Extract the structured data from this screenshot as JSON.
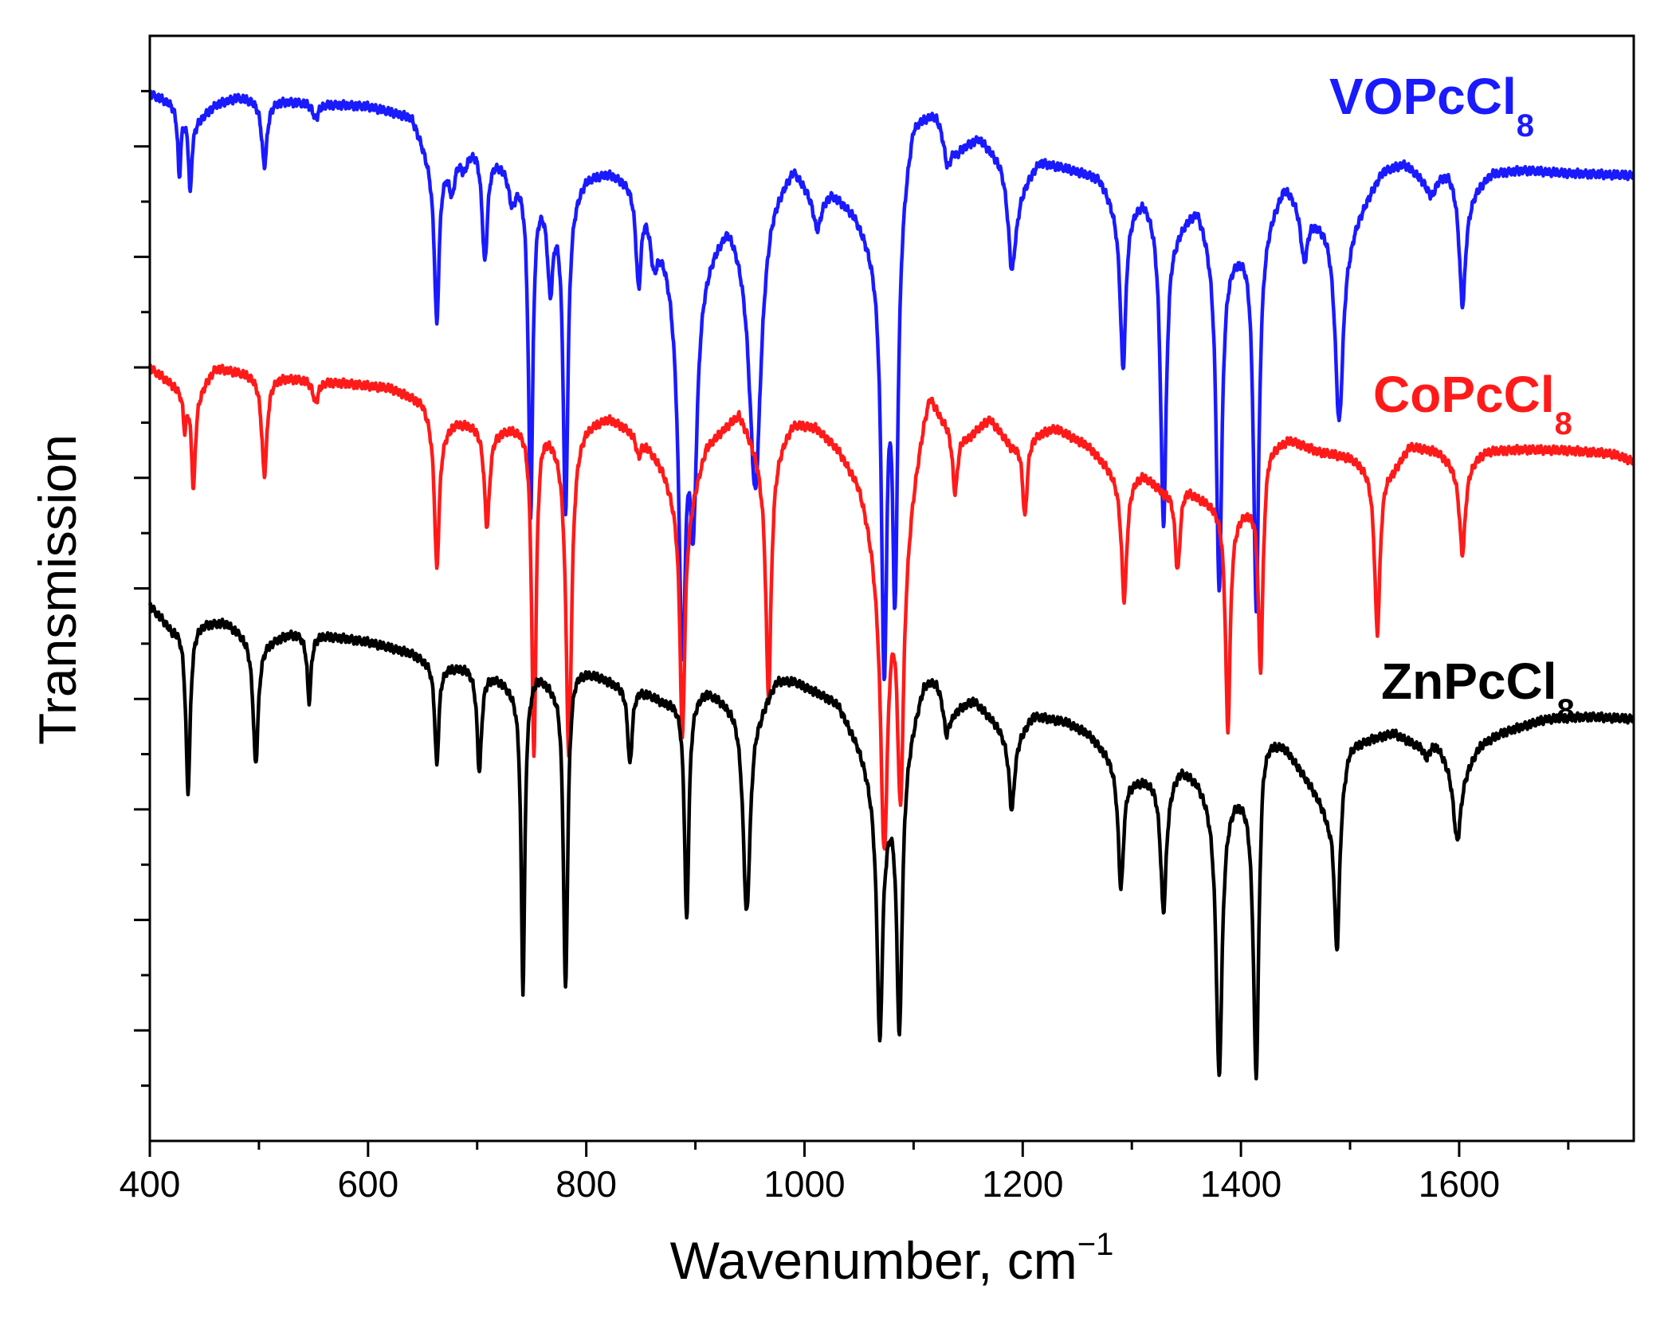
{
  "chart_data": {
    "type": "line",
    "title": "",
    "xlabel": "Wavenumber, cm",
    "xlabel_sup": "−1",
    "ylabel": "Transmission",
    "xlim": [
      400,
      1760
    ],
    "ylim": [
      0,
      100
    ],
    "x_ticks_major": [
      400,
      600,
      800,
      1000,
      1200,
      1400,
      1600
    ],
    "x_tick_labels": [
      "400",
      "600",
      "800",
      "1000",
      "1200",
      "1400",
      "1600"
    ],
    "x_ticks_minor": [
      500,
      700,
      900,
      1100,
      1300,
      1500,
      1700
    ],
    "y_ticks_major": [
      10,
      20,
      30,
      40,
      50,
      60,
      70,
      80,
      90
    ],
    "y_ticks_minor": [
      5,
      15,
      25,
      35,
      45,
      55,
      65,
      75,
      85,
      95
    ],
    "grid": false,
    "series": [
      {
        "name": "VOPcCl8",
        "label_main": "VOPcCl",
        "label_sub": "8",
        "color": "#1a1aff",
        "baseline": [
          [
            400,
            94.8
          ],
          [
            420,
            94
          ],
          [
            440,
            92
          ],
          [
            460,
            93.8
          ],
          [
            480,
            94.5
          ],
          [
            520,
            94.2
          ],
          [
            560,
            93.9
          ],
          [
            600,
            93.7
          ],
          [
            640,
            92.8
          ],
          [
            660,
            88
          ],
          [
            680,
            89.4
          ],
          [
            700,
            90.4
          ],
          [
            720,
            89.2
          ],
          [
            740,
            88
          ],
          [
            780,
            85
          ],
          [
            800,
            87.6
          ],
          [
            820,
            88
          ],
          [
            850,
            87
          ],
          [
            880,
            80
          ],
          [
            900,
            79
          ],
          [
            930,
            84
          ],
          [
            950,
            81
          ],
          [
            970,
            86
          ],
          [
            990,
            88.6
          ],
          [
            1010,
            85.5
          ],
          [
            1025,
            86.2
          ],
          [
            1045,
            84.5
          ],
          [
            1060,
            82
          ],
          [
            1075,
            80
          ],
          [
            1090,
            88
          ],
          [
            1100,
            93
          ],
          [
            1120,
            93.5
          ],
          [
            1140,
            90
          ],
          [
            1160,
            91
          ],
          [
            1180,
            89
          ],
          [
            1195,
            86
          ],
          [
            1215,
            88.8
          ],
          [
            1240,
            88.2
          ],
          [
            1270,
            87.4
          ],
          [
            1290,
            84
          ],
          [
            1310,
            85.8
          ],
          [
            1340,
            83
          ],
          [
            1360,
            85
          ],
          [
            1380,
            80
          ],
          [
            1400,
            81.5
          ],
          [
            1420,
            83
          ],
          [
            1440,
            87
          ],
          [
            1470,
            84
          ],
          [
            1500,
            83
          ],
          [
            1530,
            88
          ],
          [
            1550,
            88.6
          ],
          [
            1570,
            87
          ],
          [
            1590,
            88
          ],
          [
            1610,
            86
          ],
          [
            1630,
            87.7
          ],
          [
            1660,
            87.9
          ],
          [
            1700,
            87.6
          ],
          [
            1760,
            87.4
          ]
        ],
        "peaks": [
          [
            427,
            6,
            1.6
          ],
          [
            437,
            6.5,
            1.6
          ],
          [
            505,
            6,
            3
          ],
          [
            552,
            1.4,
            3
          ],
          [
            663,
            14,
            2.5
          ],
          [
            677,
            3,
            3
          ],
          [
            688,
            1.5,
            3
          ],
          [
            707,
            10,
            3
          ],
          [
            732,
            3,
            4
          ],
          [
            749,
            30,
            2.4
          ],
          [
            767,
            8,
            3
          ],
          [
            781,
            28,
            2.6
          ],
          [
            848,
            9,
            3
          ],
          [
            862,
            4,
            4
          ],
          [
            888,
            33,
            4
          ],
          [
            898,
            20,
            4
          ],
          [
            955,
            23,
            6
          ],
          [
            1073,
            36,
            3
          ],
          [
            1083,
            33,
            3
          ],
          [
            1012,
            2.6,
            4
          ],
          [
            1131,
            3,
            4
          ],
          [
            1190,
            8,
            4
          ],
          [
            1292,
            14,
            3
          ],
          [
            1329,
            28,
            3.2
          ],
          [
            1380,
            30,
            3
          ],
          [
            1414,
            34,
            3
          ],
          [
            1458,
            5,
            4
          ],
          [
            1490,
            18,
            4.5
          ],
          [
            1575,
            1.5,
            4
          ],
          [
            1603,
            11,
            3.5
          ]
        ]
      },
      {
        "name": "CoPcCl8",
        "label_main": "CoPcCl",
        "label_sub": "8",
        "color": "#ff1a1a",
        "baseline": [
          [
            400,
            70
          ],
          [
            420,
            68.6
          ],
          [
            440,
            67
          ],
          [
            460,
            70
          ],
          [
            500,
            69.4
          ],
          [
            540,
            69
          ],
          [
            580,
            68.6
          ],
          [
            620,
            68.2
          ],
          [
            650,
            67
          ],
          [
            665,
            64
          ],
          [
            680,
            65.2
          ],
          [
            700,
            65
          ],
          [
            720,
            64.6
          ],
          [
            745,
            65.2
          ],
          [
            760,
            65.2
          ],
          [
            780,
            63
          ],
          [
            800,
            65
          ],
          [
            820,
            65.6
          ],
          [
            850,
            64
          ],
          [
            870,
            61
          ],
          [
            890,
            56
          ],
          [
            910,
            63
          ],
          [
            940,
            66
          ],
          [
            960,
            62
          ],
          [
            975,
            63
          ],
          [
            990,
            65.2
          ],
          [
            1010,
            64.8
          ],
          [
            1030,
            63
          ],
          [
            1050,
            60
          ],
          [
            1065,
            55
          ],
          [
            1080,
            54
          ],
          [
            1095,
            58
          ],
          [
            1110,
            66
          ],
          [
            1115,
            68
          ],
          [
            1125,
            66
          ],
          [
            1150,
            64
          ],
          [
            1170,
            65.5
          ],
          [
            1190,
            63
          ],
          [
            1210,
            64
          ],
          [
            1230,
            64.6
          ],
          [
            1260,
            63
          ],
          [
            1290,
            60
          ],
          [
            1310,
            60.5
          ],
          [
            1330,
            59
          ],
          [
            1345,
            60
          ],
          [
            1360,
            58.6
          ],
          [
            1380,
            57.6
          ],
          [
            1395,
            57
          ],
          [
            1410,
            58
          ],
          [
            1425,
            63
          ],
          [
            1445,
            63.6
          ],
          [
            1470,
            62.5
          ],
          [
            1500,
            62
          ],
          [
            1520,
            61
          ],
          [
            1540,
            61
          ],
          [
            1555,
            63
          ],
          [
            1580,
            62.5
          ],
          [
            1600,
            61
          ],
          [
            1625,
            62.5
          ],
          [
            1660,
            62.6
          ],
          [
            1700,
            62.5
          ],
          [
            1740,
            62.2
          ],
          [
            1760,
            61.5
          ]
        ],
        "peaks": [
          [
            432,
            3,
            1.6
          ],
          [
            440,
            8,
            2
          ],
          [
            505,
            9,
            3
          ],
          [
            552,
            2,
            3
          ],
          [
            663,
            12.5,
            2.5
          ],
          [
            709,
            9,
            3
          ],
          [
            752,
            30,
            2.4
          ],
          [
            784,
            28.5,
            3
          ],
          [
            848,
            2,
            3
          ],
          [
            888,
            20,
            2.5
          ],
          [
            967,
            22,
            3
          ],
          [
            1073,
            27,
            4
          ],
          [
            1088,
            24,
            3.5
          ],
          [
            1138,
            6,
            3
          ],
          [
            1202,
            7,
            2.5
          ],
          [
            1293,
            11,
            3
          ],
          [
            1342,
            8,
            3
          ],
          [
            1388,
            20,
            2.6
          ],
          [
            1418,
            18,
            2.6
          ],
          [
            1525,
            15,
            3
          ],
          [
            1603,
            8,
            3.2
          ]
        ]
      },
      {
        "name": "ZnPcCl8",
        "label_main": "ZnPcCl",
        "label_sub": "8",
        "color": "#000000",
        "baseline": [
          [
            400,
            48.5
          ],
          [
            420,
            46.5
          ],
          [
            450,
            47
          ],
          [
            470,
            47
          ],
          [
            500,
            45
          ],
          [
            530,
            46
          ],
          [
            560,
            45.8
          ],
          [
            600,
            45.2
          ],
          [
            640,
            44.2
          ],
          [
            665,
            43
          ],
          [
            690,
            43
          ],
          [
            720,
            42
          ],
          [
            740,
            40.5
          ],
          [
            755,
            42.5
          ],
          [
            770,
            41.5
          ],
          [
            790,
            43
          ],
          [
            810,
            42.3
          ],
          [
            825,
            41.6
          ],
          [
            850,
            41
          ],
          [
            870,
            40
          ],
          [
            890,
            40
          ],
          [
            910,
            41
          ],
          [
            930,
            40
          ],
          [
            960,
            39.6
          ],
          [
            975,
            42
          ],
          [
            990,
            41.8
          ],
          [
            1010,
            40.8
          ],
          [
            1030,
            39.8
          ],
          [
            1050,
            36
          ],
          [
            1065,
            32
          ],
          [
            1075,
            31
          ],
          [
            1090,
            35
          ],
          [
            1110,
            41.8
          ],
          [
            1120,
            42
          ],
          [
            1135,
            39
          ],
          [
            1155,
            40
          ],
          [
            1175,
            38
          ],
          [
            1190,
            36
          ],
          [
            1210,
            38.6
          ],
          [
            1240,
            38
          ],
          [
            1260,
            37
          ],
          [
            1280,
            35
          ],
          [
            1300,
            33
          ],
          [
            1320,
            33
          ],
          [
            1335,
            33
          ],
          [
            1345,
            34
          ],
          [
            1360,
            33
          ],
          [
            1380,
            30
          ],
          [
            1395,
            31.8
          ],
          [
            1410,
            32
          ],
          [
            1420,
            37.4
          ],
          [
            1440,
            36
          ],
          [
            1460,
            33
          ],
          [
            1480,
            30
          ],
          [
            1500,
            36
          ],
          [
            1520,
            36.5
          ],
          [
            1540,
            37
          ],
          [
            1560,
            36
          ],
          [
            1580,
            36
          ],
          [
            1600,
            33
          ],
          [
            1620,
            36
          ],
          [
            1640,
            37
          ],
          [
            1680,
            38.2
          ],
          [
            1720,
            38.4
          ],
          [
            1760,
            38.2
          ]
        ],
        "peaks": [
          [
            435,
            15,
            2.5
          ],
          [
            497,
            11,
            2.8
          ],
          [
            546,
            6,
            2.2
          ],
          [
            663,
            9,
            2.2
          ],
          [
            702,
            9,
            2.5
          ],
          [
            742,
            27,
            2
          ],
          [
            781,
            28.5,
            2.4
          ],
          [
            840,
            7,
            2.5
          ],
          [
            892,
            20,
            2.4
          ],
          [
            947,
            19,
            4
          ],
          [
            1069,
            22,
            3
          ],
          [
            1087,
            24,
            3
          ],
          [
            1130,
            3,
            3
          ],
          [
            1190,
            6,
            3
          ],
          [
            1290,
            11,
            3
          ],
          [
            1329,
            12,
            3.2
          ],
          [
            1380,
            24,
            3.2
          ],
          [
            1414,
            28,
            3
          ],
          [
            1488,
            15,
            3
          ],
          [
            1570,
            1.2,
            3
          ],
          [
            1598,
            6,
            4
          ]
        ]
      }
    ],
    "annotations": [
      {
        "series": "VOPcCl8",
        "text": "VOPcCl",
        "sub": "8"
      },
      {
        "series": "CoPcCl8",
        "text": "CoPcCl",
        "sub": "8"
      },
      {
        "series": "ZnPcCl8",
        "text": "ZnPcCl",
        "sub": "8"
      }
    ]
  }
}
